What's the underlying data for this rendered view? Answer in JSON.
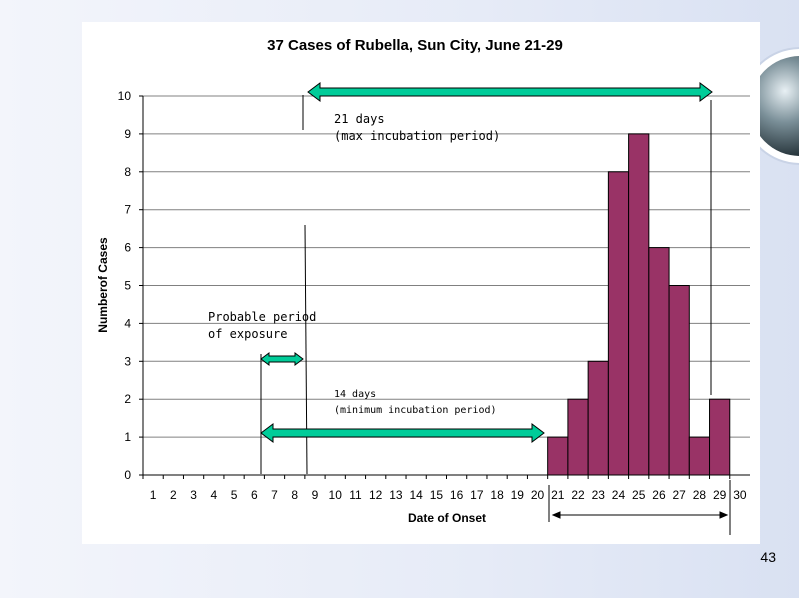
{
  "slide": {
    "number": "43"
  },
  "chart_data": {
    "type": "bar",
    "title": "37 Cases of Rubella, Sun City, June 21-29",
    "xlabel": "Date of Onset",
    "ylabel": "Numberof Cases",
    "categories": [
      "1",
      "2",
      "3",
      "4",
      "5",
      "6",
      "7",
      "8",
      "9",
      "10",
      "11",
      "12",
      "13",
      "14",
      "15",
      "16",
      "17",
      "18",
      "19",
      "20",
      "21",
      "22",
      "23",
      "24",
      "25",
      "26",
      "27",
      "28",
      "29",
      "30"
    ],
    "values": [
      0,
      0,
      0,
      0,
      0,
      0,
      0,
      0,
      0,
      0,
      0,
      0,
      0,
      0,
      0,
      0,
      0,
      0,
      0,
      0,
      1,
      2,
      3,
      8,
      9,
      6,
      5,
      1,
      2,
      0
    ],
    "ylim": [
      0,
      10
    ],
    "yticks": [
      "0",
      "1",
      "2",
      "3",
      "4",
      "5",
      "6",
      "7",
      "8",
      "9",
      "10"
    ],
    "grid": true,
    "colors": {
      "bar": "#993366",
      "arrow": "#00cc99",
      "gridline": "#808080"
    },
    "annotations": {
      "max_incubation": {
        "line1": "21 days",
        "line2": "(max incubation period)"
      },
      "exposure": {
        "line1": "Probable period",
        "line2": "of exposure"
      },
      "min_incubation": {
        "line1": "14 days",
        "line2": "(minimum incubation period)"
      }
    }
  }
}
